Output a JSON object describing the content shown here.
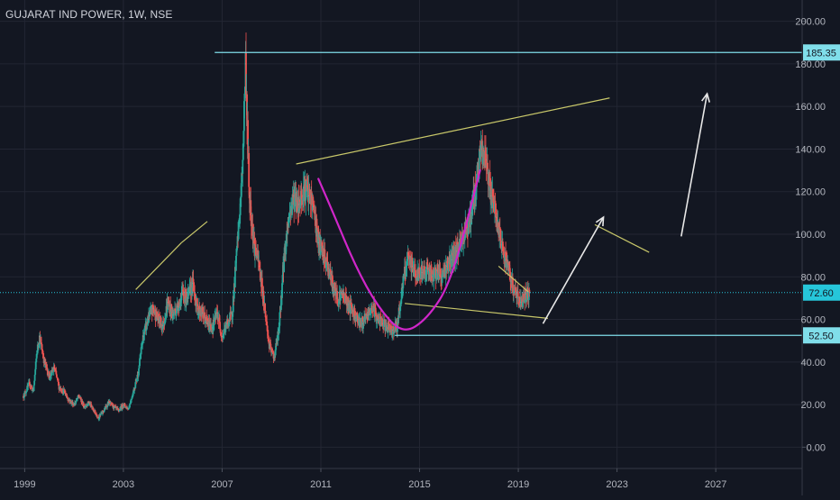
{
  "chart_data": {
    "type": "candlestick",
    "title": "GUJARAT IND POWER, 1W, NSE",
    "x_ticks": [
      "1999",
      "2003",
      "2007",
      "2011",
      "2015",
      "2019",
      "2023",
      "2027"
    ],
    "x_range": [
      1998.0,
      2030.5
    ],
    "y_ticks": [
      "0.00",
      "20.00",
      "40.00",
      "60.00",
      "80.00",
      "100.00",
      "120.00",
      "140.00",
      "160.00",
      "180.00",
      "200.00"
    ],
    "y_range": [
      -10,
      210
    ],
    "price_labels": [
      {
        "text": "185.35",
        "value": 185.35,
        "color": "#80deea"
      },
      {
        "text": "72.60",
        "value": 72.6,
        "color": "#26c6da"
      },
      {
        "text": "52.50",
        "value": 52.5,
        "color": "#80deea"
      }
    ],
    "price_series": [
      [
        1998.95,
        24
      ],
      [
        1999.2,
        30
      ],
      [
        1999.35,
        26
      ],
      [
        1999.5,
        45
      ],
      [
        1999.6,
        52
      ],
      [
        1999.8,
        40
      ],
      [
        2000.0,
        33
      ],
      [
        2000.2,
        37
      ],
      [
        2000.4,
        28
      ],
      [
        2000.6,
        26
      ],
      [
        2000.8,
        22
      ],
      [
        2001.0,
        20
      ],
      [
        2001.2,
        24
      ],
      [
        2001.4,
        19
      ],
      [
        2001.6,
        21
      ],
      [
        2001.8,
        17
      ],
      [
        2002.0,
        14
      ],
      [
        2002.2,
        17
      ],
      [
        2002.4,
        21
      ],
      [
        2002.6,
        19
      ],
      [
        2002.8,
        17
      ],
      [
        2003.0,
        20
      ],
      [
        2003.2,
        18
      ],
      [
        2003.4,
        26
      ],
      [
        2003.6,
        35
      ],
      [
        2003.8,
        52
      ],
      [
        2004.0,
        60
      ],
      [
        2004.2,
        65
      ],
      [
        2004.4,
        60
      ],
      [
        2004.6,
        57
      ],
      [
        2004.8,
        68
      ],
      [
        2005.0,
        62
      ],
      [
        2005.2,
        66
      ],
      [
        2005.4,
        72
      ],
      [
        2005.6,
        70
      ],
      [
        2005.8,
        77
      ],
      [
        2006.0,
        65
      ],
      [
        2006.2,
        63
      ],
      [
        2006.4,
        58
      ],
      [
        2006.6,
        56
      ],
      [
        2006.8,
        63
      ],
      [
        2007.0,
        52
      ],
      [
        2007.2,
        58
      ],
      [
        2007.4,
        62
      ],
      [
        2007.6,
        92
      ],
      [
        2007.8,
        125
      ],
      [
        2007.95,
        180
      ],
      [
        2008.1,
        118
      ],
      [
        2008.3,
        95
      ],
      [
        2008.5,
        85
      ],
      [
        2008.7,
        68
      ],
      [
        2008.9,
        48
      ],
      [
        2009.1,
        42
      ],
      [
        2009.3,
        55
      ],
      [
        2009.5,
        88
      ],
      [
        2009.7,
        108
      ],
      [
        2009.9,
        118
      ],
      [
        2010.1,
        114
      ],
      [
        2010.3,
        122
      ],
      [
        2010.5,
        118
      ],
      [
        2010.7,
        113
      ],
      [
        2010.9,
        96
      ],
      [
        2011.1,
        90
      ],
      [
        2011.3,
        84
      ],
      [
        2011.5,
        75
      ],
      [
        2011.7,
        70
      ],
      [
        2011.9,
        72
      ],
      [
        2012.1,
        67
      ],
      [
        2012.3,
        64
      ],
      [
        2012.5,
        60
      ],
      [
        2012.7,
        58
      ],
      [
        2012.9,
        62
      ],
      [
        2013.1,
        66
      ],
      [
        2013.3,
        60
      ],
      [
        2013.5,
        58
      ],
      [
        2013.7,
        56
      ],
      [
        2013.9,
        55
      ],
      [
        2014.1,
        57
      ],
      [
        2014.3,
        75
      ],
      [
        2014.5,
        88
      ],
      [
        2014.7,
        85
      ],
      [
        2014.9,
        80
      ],
      [
        2015.1,
        82
      ],
      [
        2015.3,
        84
      ],
      [
        2015.5,
        80
      ],
      [
        2015.7,
        83
      ],
      [
        2015.9,
        80
      ],
      [
        2016.1,
        85
      ],
      [
        2016.3,
        88
      ],
      [
        2016.5,
        92
      ],
      [
        2016.7,
        98
      ],
      [
        2016.9,
        103
      ],
      [
        2017.1,
        110
      ],
      [
        2017.3,
        125
      ],
      [
        2017.5,
        140
      ],
      [
        2017.7,
        135
      ],
      [
        2017.9,
        118
      ],
      [
        2018.1,
        108
      ],
      [
        2018.3,
        95
      ],
      [
        2018.5,
        88
      ],
      [
        2018.7,
        78
      ],
      [
        2018.9,
        72
      ],
      [
        2019.1,
        68
      ],
      [
        2019.3,
        72
      ],
      [
        2019.45,
        72.6
      ]
    ],
    "annotations": {
      "horizontal_lines": [
        {
          "from": [
            2006.7,
            185.35
          ],
          "to": [
            2030.5,
            185.35
          ],
          "color": "#80deea"
        },
        {
          "from": [
            2014.0,
            52.5
          ],
          "to": [
            2030.5,
            52.5
          ],
          "color": "#80deea"
        }
      ],
      "trend_lines": [
        {
          "from": [
            2003.5,
            74
          ],
          "to": [
            2005.35,
            96
          ],
          "color": "#c9c86a"
        },
        {
          "from": [
            2005.35,
            96
          ],
          "to": [
            2006.4,
            106
          ],
          "color": "#c9c86a"
        },
        {
          "from": [
            2010.0,
            133
          ],
          "to": [
            2022.7,
            164
          ],
          "color": "#c9c86a"
        },
        {
          "from": [
            2014.4,
            67.5
          ],
          "to": [
            2020.2,
            60.5
          ],
          "color": "#c9c86a"
        },
        {
          "from": [
            2018.2,
            85
          ],
          "to": [
            2019.4,
            73
          ],
          "color": "#c9c86a"
        },
        {
          "from": [
            2022.1,
            104.5
          ],
          "to": [
            2024.3,
            91.5
          ],
          "color": "#c9c86a"
        }
      ],
      "arrows": [
        {
          "from": [
            2020.0,
            58
          ],
          "to": [
            2022.45,
            108
          ],
          "color": "#e8e8e8"
        },
        {
          "from": [
            2025.6,
            99
          ],
          "to": [
            2026.65,
            166
          ],
          "color": "#e8e8e8"
        }
      ],
      "curve": {
        "points": [
          [
            2010.9,
            126
          ],
          [
            2011.5,
            110
          ],
          [
            2012.4,
            85
          ],
          [
            2013.3,
            66
          ],
          [
            2014.3,
            53
          ],
          [
            2015.3,
            60
          ],
          [
            2016.3,
            78
          ],
          [
            2017.45,
            130
          ]
        ],
        "color": "#d026c9"
      }
    },
    "grid": true,
    "crosshair_value": 72.6
  }
}
